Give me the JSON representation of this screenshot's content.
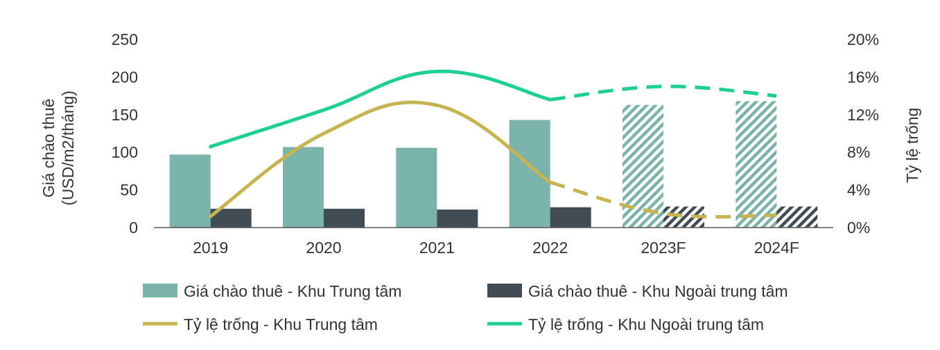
{
  "chart_data": {
    "type": "bar",
    "categories": [
      "2019",
      "2020",
      "2021",
      "2022",
      "2023F",
      "2024F"
    ],
    "forecast_from_index": 4,
    "y_left": {
      "label_line1": "Giá chào thuê",
      "label_line2": "(USD/m2/tháng)",
      "ylim": [
        0,
        250
      ],
      "ticks": [
        "0",
        "50",
        "100",
        "150",
        "200",
        "250"
      ]
    },
    "y_right": {
      "label": "Tỷ lệ trống",
      "ylim": [
        0,
        20
      ],
      "ticks": [
        "0%",
        "4%",
        "8%",
        "12%",
        "16%",
        "20%"
      ]
    },
    "series": [
      {
        "name": "Giá chào thuê - Khu Trung tâm",
        "kind": "bar",
        "axis": "left",
        "color": "#7bb3ab",
        "values": [
          97,
          107,
          106,
          143,
          163,
          168
        ]
      },
      {
        "name": "Giá chào thuê - Khu Ngoài trung tâm",
        "kind": "bar",
        "axis": "left",
        "color": "#404b54",
        "values": [
          25,
          25,
          24,
          27,
          28,
          28
        ]
      },
      {
        "name": "Tỷ lệ trống - Khu Trung tâm",
        "kind": "line",
        "axis": "right",
        "color": "#c6b452",
        "values": [
          1.2,
          10.0,
          13.0,
          4.8,
          1.5,
          1.3
        ]
      },
      {
        "name": "Tỷ lệ trống - Khu Ngoài trung tâm",
        "kind": "line",
        "axis": "right",
        "color": "#1fcf8f",
        "values": [
          8.6,
          12.5,
          16.6,
          13.6,
          15.0,
          14.0
        ]
      }
    ],
    "legend_position": "bottom",
    "grid": false
  }
}
